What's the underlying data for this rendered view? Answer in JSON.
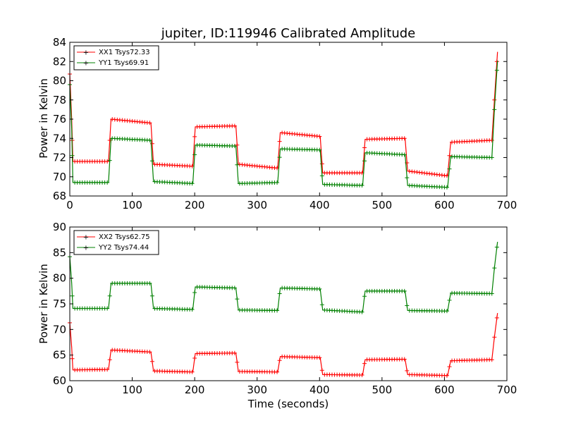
{
  "chart_data": [
    {
      "type": "line",
      "title": "jupiter, ID:119946 Calibrated Amplitude",
      "xlabel": "",
      "ylabel": "Power in Kelvin",
      "xlim": [
        0,
        700
      ],
      "ylim": [
        68,
        84
      ],
      "xticks": [
        "0",
        "100",
        "200",
        "300",
        "400",
        "500",
        "600",
        "700"
      ],
      "yticks": [
        "68",
        "70",
        "72",
        "74",
        "76",
        "78",
        "80",
        "82",
        "84"
      ],
      "grid": false,
      "legend_position": "top-left",
      "series": [
        {
          "name": "XX1 Tsys72.33",
          "color": "#ff0000",
          "points": [
            [
              0,
              80.7
            ],
            [
              3,
              76.0
            ],
            [
              5,
              71.6
            ],
            [
              62,
              71.6
            ],
            [
              66,
              76.0
            ],
            [
              130,
              75.6
            ],
            [
              134,
              71.3
            ],
            [
              197,
              71.1
            ],
            [
              201,
              75.2
            ],
            [
              266,
              75.3
            ],
            [
              270,
              71.3
            ],
            [
              333,
              70.9
            ],
            [
              337,
              74.6
            ],
            [
              401,
              74.2
            ],
            [
              405,
              70.4
            ],
            [
              469,
              70.4
            ],
            [
              473,
              73.9
            ],
            [
              537,
              74.0
            ],
            [
              541,
              70.6
            ],
            [
              605,
              70.1
            ],
            [
              610,
              73.6
            ],
            [
              676,
              73.8
            ],
            [
              680,
              78.0
            ],
            [
              685,
              83.0
            ]
          ]
        },
        {
          "name": "YY1 Tsys69.91",
          "color": "#008000",
          "points": [
            [
              0,
              79.6
            ],
            [
              3,
              75.0
            ],
            [
              5,
              69.4
            ],
            [
              62,
              69.4
            ],
            [
              66,
              74.0
            ],
            [
              130,
              73.8
            ],
            [
              134,
              69.5
            ],
            [
              197,
              69.3
            ],
            [
              201,
              73.3
            ],
            [
              266,
              73.2
            ],
            [
              270,
              69.3
            ],
            [
              333,
              69.4
            ],
            [
              337,
              72.9
            ],
            [
              401,
              72.8
            ],
            [
              405,
              69.2
            ],
            [
              469,
              69.1
            ],
            [
              473,
              72.5
            ],
            [
              537,
              72.3
            ],
            [
              541,
              69.1
            ],
            [
              605,
              68.9
            ],
            [
              610,
              72.1
            ],
            [
              676,
              72.0
            ],
            [
              680,
              77.0
            ],
            [
              685,
              82.1
            ]
          ]
        }
      ]
    },
    {
      "type": "line",
      "title": "",
      "xlabel": "Time (seconds)",
      "ylabel": "Power in Kelvin",
      "xlim": [
        0,
        700
      ],
      "ylim": [
        60,
        90
      ],
      "xticks": [
        "0",
        "100",
        "200",
        "300",
        "400",
        "500",
        "600",
        "700"
      ],
      "yticks": [
        "60",
        "65",
        "70",
        "75",
        "80",
        "85",
        "90"
      ],
      "grid": false,
      "legend_position": "top-left",
      "series": [
        {
          "name": "XX2 Tsys62.75",
          "color": "#ff0000",
          "points": [
            [
              0,
              71.3
            ],
            [
              3,
              66.5
            ],
            [
              5,
              62.1
            ],
            [
              62,
              62.2
            ],
            [
              66,
              66.0
            ],
            [
              130,
              65.6
            ],
            [
              134,
              61.9
            ],
            [
              197,
              61.7
            ],
            [
              201,
              65.3
            ],
            [
              266,
              65.4
            ],
            [
              270,
              61.8
            ],
            [
              333,
              61.7
            ],
            [
              337,
              64.7
            ],
            [
              401,
              64.5
            ],
            [
              405,
              61.2
            ],
            [
              469,
              61.1
            ],
            [
              473,
              64.1
            ],
            [
              537,
              64.2
            ],
            [
              541,
              61.2
            ],
            [
              605,
              61.0
            ],
            [
              610,
              63.9
            ],
            [
              676,
              64.1
            ],
            [
              680,
              68.5
            ],
            [
              685,
              73.2
            ]
          ]
        },
        {
          "name": "YY2 Tsys74.44",
          "color": "#008000",
          "points": [
            [
              0,
              84.2
            ],
            [
              3,
              79.0
            ],
            [
              5,
              74.1
            ],
            [
              62,
              74.1
            ],
            [
              66,
              79.0
            ],
            [
              130,
              79.0
            ],
            [
              134,
              74.1
            ],
            [
              197,
              73.9
            ],
            [
              201,
              78.3
            ],
            [
              266,
              78.1
            ],
            [
              270,
              73.8
            ],
            [
              333,
              73.7
            ],
            [
              337,
              78.1
            ],
            [
              401,
              77.9
            ],
            [
              405,
              73.8
            ],
            [
              469,
              73.4
            ],
            [
              473,
              77.5
            ],
            [
              537,
              77.5
            ],
            [
              541,
              73.7
            ],
            [
              605,
              73.6
            ],
            [
              610,
              77.1
            ],
            [
              676,
              77.0
            ],
            [
              680,
              82.0
            ],
            [
              685,
              87.1
            ]
          ]
        }
      ]
    }
  ]
}
